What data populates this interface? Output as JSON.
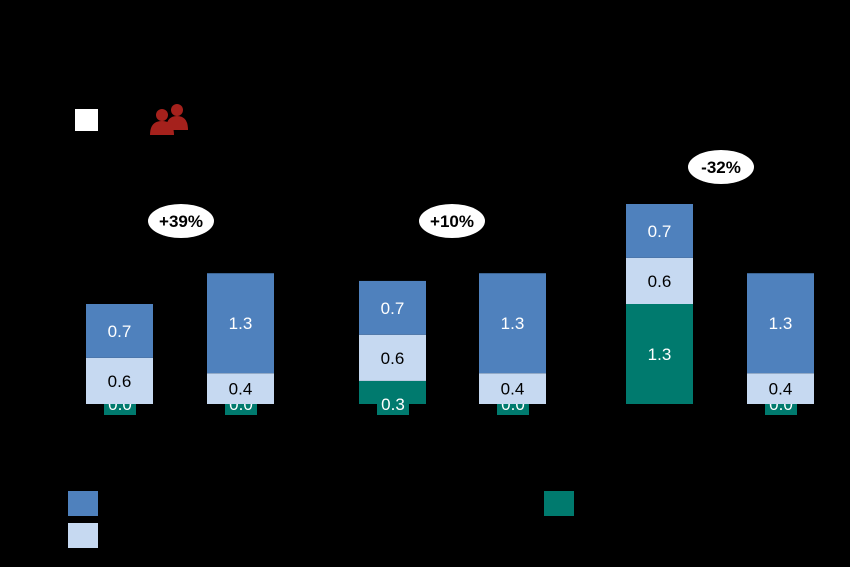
{
  "colors": {
    "background": "#000000",
    "series_top": "#4F81BD",
    "series_middle": "#C6D9F1",
    "series_bottom": "#007A6E",
    "badge_bg": "#FFFFFF",
    "icon_people": "#A5211C",
    "label_dark": "#000000",
    "label_light": "#FFFFFF"
  },
  "header": {
    "legend_square_icon": "white-square-icon",
    "people_icon": "people-icon"
  },
  "chart_data": {
    "type": "bar",
    "stacked": true,
    "grid": false,
    "ylim": [
      0,
      2.7
    ],
    "groups": [
      {
        "change_label": "+39%",
        "bars": [
          {
            "segments": [
              0.0,
              0.6,
              0.7
            ]
          },
          {
            "segments": [
              0.0,
              0.4,
              1.3
            ]
          }
        ]
      },
      {
        "change_label": "+10%",
        "bars": [
          {
            "segments": [
              0.3,
              0.6,
              0.7
            ]
          },
          {
            "segments": [
              0.0,
              0.4,
              1.3
            ]
          }
        ]
      },
      {
        "change_label": "-32%",
        "bars": [
          {
            "segments": [
              1.3,
              0.6,
              0.7
            ]
          },
          {
            "segments": [
              0.0,
              0.4,
              1.3
            ]
          }
        ]
      }
    ],
    "segment_labels": [
      [
        [
          "0.0",
          "0.6",
          "0.7"
        ],
        [
          "0.0",
          "0.4",
          "1.3"
        ]
      ],
      [
        [
          "0.3",
          "0.6",
          "0.7"
        ],
        [
          "0.0",
          "0.4",
          "1.3"
        ]
      ],
      [
        [
          "1.3",
          "0.6",
          "0.7"
        ],
        [
          "0.0",
          "0.4",
          "1.3"
        ]
      ]
    ],
    "legend": [
      {
        "swatch": "series_top",
        "label": ""
      },
      {
        "swatch": "series_middle",
        "label": ""
      },
      {
        "swatch": "series_bottom",
        "label": ""
      }
    ]
  }
}
